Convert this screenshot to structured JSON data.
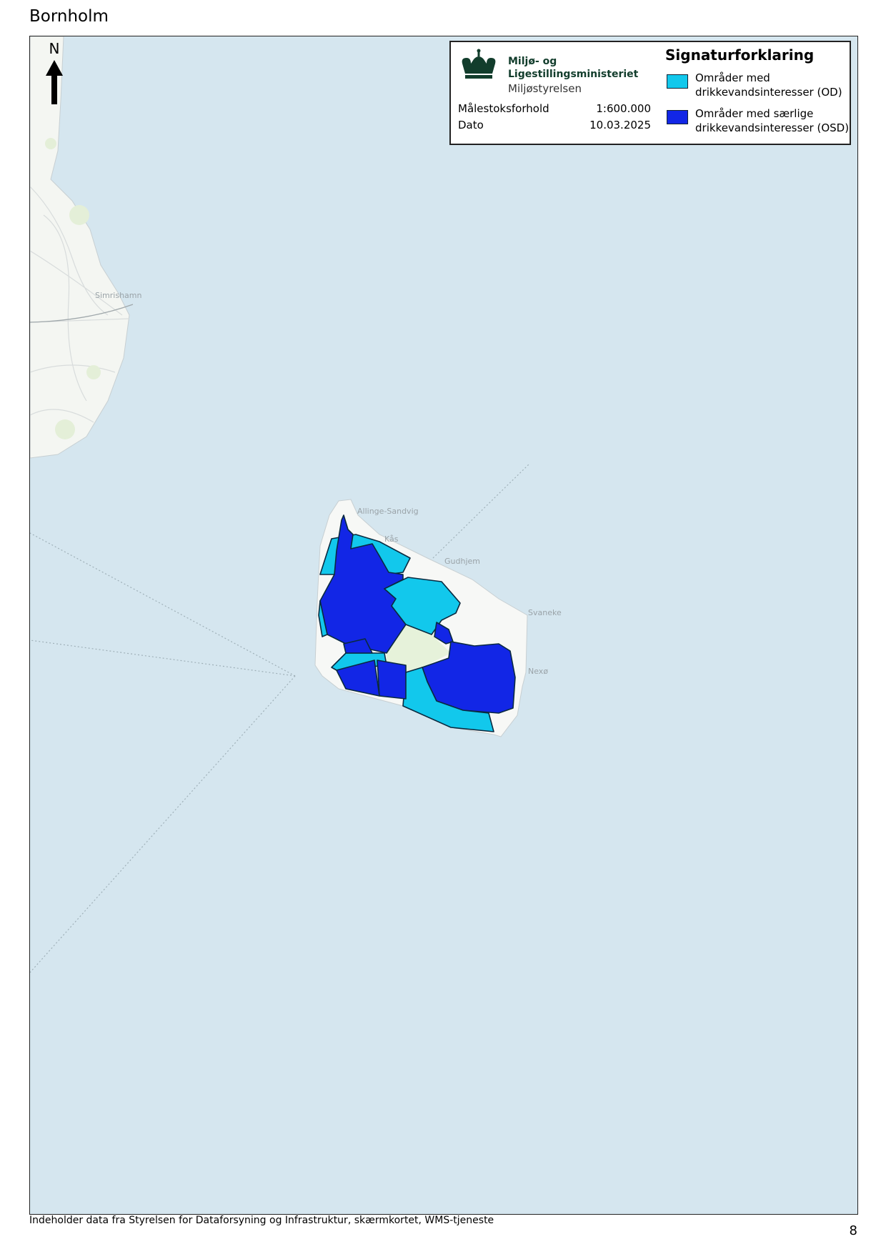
{
  "title": "Bornholm",
  "north_label": "N",
  "legend": {
    "ministry_line1": "Miljø- og",
    "ministry_line2": "Ligestillingsministeriet",
    "agency": "Miljøstyrelsen",
    "scale_label": "Målestoksforhold",
    "scale_value": "1:600.000",
    "date_label": "Dato",
    "date_value": "10.03.2025",
    "heading": "Signaturforklaring",
    "items": [
      {
        "label_line1": "Områder med",
        "label_line2": "drikkevandsinteresser (OD)",
        "color": "#12c8ec"
      },
      {
        "label_line1": "Områder med særlige",
        "label_line2": "drikkevandsinteresser (OSD)",
        "color": "#1226e6"
      }
    ]
  },
  "places": [
    "Simrishamn",
    "Allinge-Sandvig",
    "Kås",
    "Gudhjem",
    "Svaneke",
    "Nexø"
  ],
  "colors": {
    "sea": "#d5e6ef",
    "land": "#f7f8f6",
    "od": "#12c8ec",
    "osd": "#1226e6"
  },
  "footer": "Indeholder data fra Styrelsen for Dataforsyning og Infrastruktur, skærmkortet, WMS-tjeneste",
  "page_number": "8"
}
